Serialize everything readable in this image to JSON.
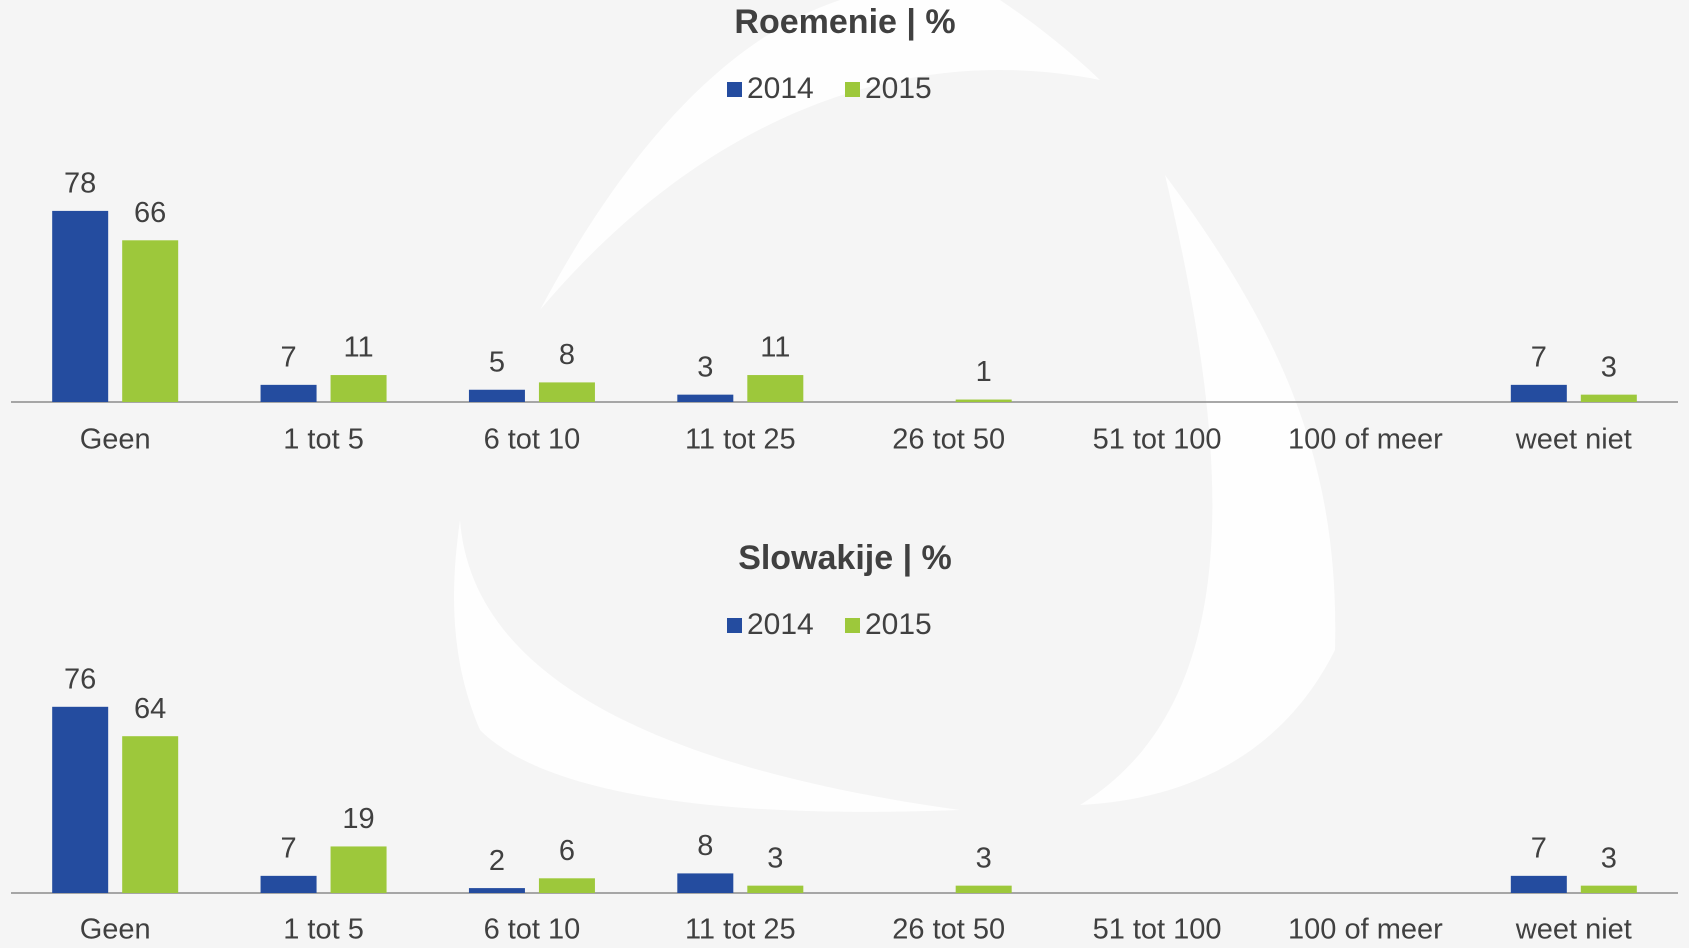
{
  "chart_data": [
    {
      "type": "bar",
      "title": "Roemenie | %",
      "categories": [
        "Geen",
        "1 tot 5",
        "6 tot 10",
        "11 tot 25",
        "26 tot 50",
        "51 tot 100",
        "100 of meer",
        "weet niet"
      ],
      "series": [
        {
          "name": "2014",
          "color": "#244c9f",
          "values": [
            78,
            7,
            5,
            3,
            null,
            null,
            null,
            7
          ]
        },
        {
          "name": "2015",
          "color": "#9dc83b",
          "values": [
            66,
            11,
            8,
            11,
            1,
            null,
            null,
            3
          ]
        }
      ],
      "legend": "top"
    },
    {
      "type": "bar",
      "title": "Slowakije | %",
      "categories": [
        "Geen",
        "1 tot 5",
        "6 tot 10",
        "11 tot 25",
        "26 tot 50",
        "51 tot 100",
        "100 of meer",
        "weet niet"
      ],
      "series": [
        {
          "name": "2014",
          "color": "#244c9f",
          "values": [
            76,
            7,
            2,
            8,
            null,
            null,
            null,
            7
          ]
        },
        {
          "name": "2015",
          "color": "#9dc83b",
          "values": [
            64,
            19,
            6,
            3,
            3,
            null,
            null,
            3
          ]
        }
      ],
      "legend": "top"
    }
  ]
}
